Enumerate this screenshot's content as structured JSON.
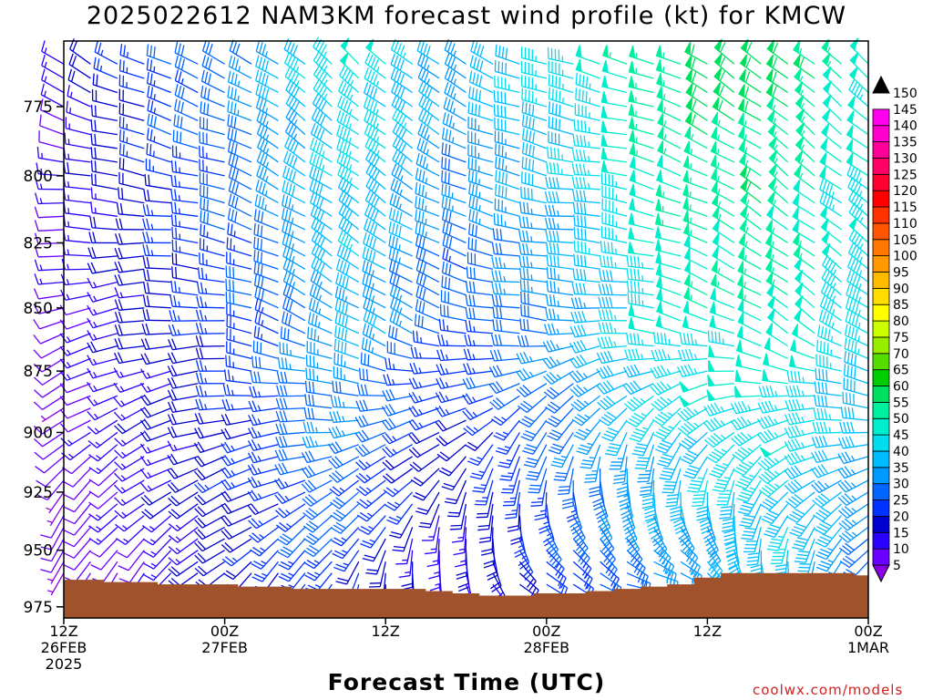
{
  "title": "2025022612 NAM3KM forecast wind profile (kt) for KMCW",
  "credit": "coolwx.com/models",
  "chart_data": {
    "type": "wind-barb time-height section",
    "title": "2025022612 NAM3KM forecast wind profile (kt) for KMCW",
    "xlabel": "Forecast Time (UTC)",
    "ylabel": "",
    "units": "kt",
    "x_ticks": [
      {
        "hour": 0,
        "lines": [
          "12Z",
          "26FEB",
          "2025"
        ]
      },
      {
        "hour": 12,
        "lines": [
          "00Z",
          "27FEB"
        ]
      },
      {
        "hour": 24,
        "lines": [
          "12Z"
        ]
      },
      {
        "hour": 36,
        "lines": [
          "00Z",
          "28FEB"
        ]
      },
      {
        "hour": 48,
        "lines": [
          "12Z"
        ]
      },
      {
        "hour": 60,
        "lines": [
          "00Z",
          "1MAR"
        ]
      }
    ],
    "x_range_hours": [
      0,
      60
    ],
    "y_axis": {
      "scale": "log-pressure",
      "inverted": true,
      "range_hPa": [
        980,
        752
      ],
      "ticks": [
        775,
        800,
        825,
        850,
        875,
        900,
        925,
        950,
        975
      ]
    },
    "pressure_levels_hPa": [
      760,
      765,
      770,
      775,
      780,
      785,
      790,
      795,
      800,
      805,
      810,
      815,
      820,
      825,
      830,
      835,
      840,
      845,
      850,
      855,
      860,
      865,
      870,
      875,
      880,
      885,
      890,
      895,
      900,
      905,
      910,
      915,
      920,
      925,
      930,
      935,
      940,
      945,
      950,
      955,
      960,
      965,
      970
    ],
    "forecast_hours": [
      0,
      2,
      4,
      6,
      8,
      10,
      12,
      14,
      16,
      18,
      20,
      22,
      24,
      26,
      28,
      30,
      32,
      34,
      36,
      38,
      40,
      42,
      44,
      46,
      48,
      50,
      52,
      54,
      56,
      58,
      60
    ],
    "surface_pressure_hPa": [
      963,
      963,
      964,
      964,
      965,
      965,
      965,
      966,
      966,
      967,
      967,
      967,
      967,
      967,
      968,
      969,
      970,
      970,
      969,
      969,
      968,
      967,
      966,
      965,
      962,
      960,
      960,
      960,
      960,
      960,
      961
    ],
    "wind_speed_knots_by_time_at_bottom_mid_top": [
      [
        8,
        10,
        14
      ],
      [
        9,
        13,
        18
      ],
      [
        10,
        16,
        22
      ],
      [
        12,
        18,
        25
      ],
      [
        14,
        20,
        28
      ],
      [
        16,
        22,
        30
      ],
      [
        18,
        24,
        32
      ],
      [
        20,
        26,
        34
      ],
      [
        22,
        28,
        38
      ],
      [
        24,
        32,
        42
      ],
      [
        26,
        36,
        46
      ],
      [
        22,
        38,
        48
      ],
      [
        18,
        36,
        46
      ],
      [
        15,
        32,
        44
      ],
      [
        14,
        28,
        40
      ],
      [
        15,
        26,
        38
      ],
      [
        18,
        28,
        40
      ],
      [
        20,
        30,
        42
      ],
      [
        24,
        32,
        44
      ],
      [
        26,
        34,
        46
      ],
      [
        28,
        38,
        48
      ],
      [
        30,
        42,
        52
      ],
      [
        32,
        46,
        56
      ],
      [
        34,
        48,
        58
      ],
      [
        34,
        50,
        60
      ],
      [
        36,
        50,
        60
      ],
      [
        36,
        52,
        60
      ],
      [
        38,
        52,
        58
      ],
      [
        36,
        50,
        56
      ],
      [
        34,
        46,
        52
      ],
      [
        30,
        44,
        50
      ]
    ],
    "wind_direction_deg_by_time_at_bottom_mid_top": [
      [
        200,
        250,
        300
      ],
      [
        205,
        255,
        300
      ],
      [
        210,
        255,
        295
      ],
      [
        215,
        260,
        295
      ],
      [
        220,
        265,
        295
      ],
      [
        225,
        270,
        295
      ],
      [
        225,
        275,
        295
      ],
      [
        220,
        285,
        300
      ],
      [
        215,
        290,
        305
      ],
      [
        210,
        295,
        310
      ],
      [
        205,
        300,
        310
      ],
      [
        190,
        300,
        310
      ],
      [
        180,
        300,
        310
      ],
      [
        170,
        295,
        310
      ],
      [
        160,
        290,
        305
      ],
      [
        150,
        285,
        300
      ],
      [
        140,
        280,
        295
      ],
      [
        125,
        275,
        290
      ],
      [
        115,
        275,
        290
      ],
      [
        110,
        270,
        285
      ],
      [
        105,
        270,
        285
      ],
      [
        100,
        275,
        285
      ],
      [
        100,
        280,
        290
      ],
      [
        105,
        285,
        295
      ],
      [
        115,
        290,
        300
      ],
      [
        130,
        295,
        305
      ],
      [
        150,
        300,
        305
      ],
      [
        165,
        305,
        310
      ],
      [
        180,
        305,
        310
      ],
      [
        195,
        305,
        310
      ],
      [
        205,
        305,
        310
      ]
    ],
    "colorbar": {
      "values": [
        5,
        10,
        15,
        20,
        25,
        30,
        35,
        40,
        45,
        50,
        55,
        60,
        65,
        70,
        75,
        80,
        85,
        90,
        95,
        100,
        105,
        110,
        115,
        120,
        125,
        130,
        135,
        140,
        145,
        150
      ],
      "colors": [
        "#8a00e6",
        "#6a00ff",
        "#2a00ff",
        "#0000d0",
        "#0033ff",
        "#0066ff",
        "#0099ff",
        "#00bbff",
        "#00ddee",
        "#00eecc",
        "#00f0a0",
        "#00e060",
        "#00cc00",
        "#55dd00",
        "#99ee00",
        "#ccff00",
        "#ffff00",
        "#ffdd00",
        "#ffbb00",
        "#ff9900",
        "#ff7700",
        "#ff5500",
        "#ff3300",
        "#ff0000",
        "#ff0033",
        "#ff0066",
        "#ff0099",
        "#ff00cc",
        "#ff00ee",
        "#000000"
      ]
    },
    "terrain_color": "#a0522d"
  }
}
